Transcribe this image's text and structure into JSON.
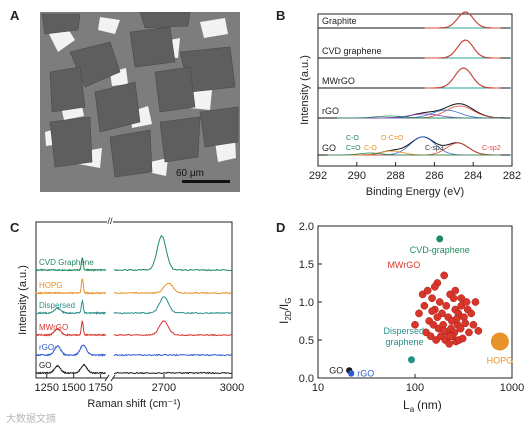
{
  "watermark": "大数据文摘",
  "panel_a": {
    "letter": "A",
    "scale_bar_label": "60 μm",
    "image_description": "micrograph of MWrGO flakes on substrate"
  },
  "panel_b": {
    "letter": "B"
  },
  "panel_c": {
    "letter": "C"
  },
  "panel_d": {
    "letter": "D"
  },
  "colors": {
    "green": "#1f8a5e",
    "orange": "#e8932a",
    "teal": "#2a8f8a",
    "red": "#d9362b",
    "blue": "#2d5bd1",
    "black": "#1a1a1a",
    "fit_red": "#e04a3a",
    "fit_blue": "#3b6fd8",
    "fit_purple": "#8e44ad",
    "baseline_teal": "#27a09a"
  },
  "chart_data": [
    {
      "type": "line",
      "panel": "B",
      "xlabel": "Binding Energy (eV)",
      "ylabel": "Intensity (a.u.)",
      "xlim": [
        292,
        282
      ],
      "x_reversed": true,
      "xticks": [
        292,
        290,
        288,
        286,
        284,
        282
      ],
      "series": [
        {
          "name": "Graphite",
          "peak_eV": 284.4,
          "fwhm": 0.9
        },
        {
          "name": "CVD graphene",
          "peak_eV": 284.4,
          "fwhm": 0.9
        },
        {
          "name": "MWrGO",
          "peak_eV": 284.5,
          "fwhm": 1.0
        },
        {
          "name": "rGO",
          "peak_eV": 284.7,
          "fwhm": 1.6
        },
        {
          "name": "GO",
          "peak_eV": 286.6,
          "fwhm": 1.4
        }
      ],
      "annotations": [
        "C-O",
        "C=O",
        "O-C=O",
        "C-O",
        "C-sp3",
        "C-sp2"
      ]
    },
    {
      "type": "line",
      "panel": "C",
      "xlabel": "Raman shift (cm⁻¹)",
      "ylabel": "Intensity (a.u.)",
      "xticks_left": [
        1250,
        1500,
        1750
      ],
      "xticks_right": [
        2700,
        3000
      ],
      "series": [
        {
          "name": "CVD Graphene",
          "D": null,
          "G": 1580,
          "2D": 2690
        },
        {
          "name": "HOPG",
          "D": null,
          "G": 1580,
          "2D": 2720
        },
        {
          "name": "Dispersed",
          "D": 1350,
          "G": 1580,
          "2D": 2700
        },
        {
          "name": "MWrGO",
          "D": 1350,
          "G": 1580,
          "2D": 2700
        },
        {
          "name": "rGO",
          "D": 1350,
          "G": 1590,
          "2D": null
        },
        {
          "name": "GO",
          "D": 1350,
          "G": 1595,
          "2D": null
        }
      ]
    },
    {
      "type": "scatter",
      "panel": "D",
      "xlabel": "L",
      "xlabel_sub": "a",
      "xlabel_unit": "(nm)",
      "ylabel": "I",
      "ylabel_sub_num": "2D",
      "ylabel_den": "I",
      "ylabel_sub_den": "G",
      "xscale": "log",
      "xlim": [
        10,
        1000
      ],
      "ylim": [
        0,
        2.0
      ],
      "xticks": [
        10,
        100,
        1000
      ],
      "yticks": [
        0.0,
        0.5,
        1.0,
        1.5,
        2.0
      ],
      "labels": {
        "cvd": "CVD-graphene",
        "mwrgo": "MWrGO",
        "dispersed": "Dispersed graphene",
        "go": "GO",
        "rgo": "rGO",
        "hopg": "HOPG"
      },
      "points": {
        "cvd": [
          [
            180,
            1.83
          ]
        ],
        "dispersed": [
          [
            92,
            0.24
          ]
        ],
        "go": [
          [
            21,
            0.1
          ]
        ],
        "rgo": [
          [
            22,
            0.06
          ]
        ],
        "hopg": [
          [
            750,
            0.48
          ]
        ],
        "mwrgo": [
          [
            120,
            1.1
          ],
          [
            135,
            1.15
          ],
          [
            150,
            1.05
          ],
          [
            170,
            1.25
          ],
          [
            180,
            1.0
          ],
          [
            200,
            1.35
          ],
          [
            210,
            0.95
          ],
          [
            230,
            1.1
          ],
          [
            250,
            1.05
          ],
          [
            160,
            0.9
          ],
          [
            190,
            0.85
          ],
          [
            220,
            0.8
          ],
          [
            240,
            0.75
          ],
          [
            260,
            0.9
          ],
          [
            280,
            0.85
          ],
          [
            300,
            0.95
          ],
          [
            320,
            0.8
          ],
          [
            350,
            0.9
          ],
          [
            380,
            0.85
          ],
          [
            400,
            0.7
          ],
          [
            140,
            0.75
          ],
          [
            155,
            0.7
          ],
          [
            175,
            0.65
          ],
          [
            195,
            0.7
          ],
          [
            215,
            0.6
          ],
          [
            235,
            0.65
          ],
          [
            255,
            0.6
          ],
          [
            275,
            0.7
          ],
          [
            295,
            0.65
          ],
          [
            330,
            0.72
          ],
          [
            360,
            0.6
          ],
          [
            130,
            0.6
          ],
          [
            145,
            0.55
          ],
          [
            165,
            0.5
          ],
          [
            185,
            0.55
          ],
          [
            205,
            0.5
          ],
          [
            225,
            0.45
          ],
          [
            245,
            0.55
          ],
          [
            265,
            0.48
          ],
          [
            285,
            0.5
          ],
          [
            310,
            0.52
          ],
          [
            110,
            0.85
          ],
          [
            100,
            0.7
          ],
          [
            420,
            1.0
          ],
          [
            450,
            0.62
          ],
          [
            160,
            1.2
          ],
          [
            260,
            1.15
          ],
          [
            300,
            1.05
          ],
          [
            125,
            0.95
          ],
          [
            340,
            1.0
          ],
          [
            230,
            0.55
          ],
          [
            200,
            0.62
          ],
          [
            170,
            0.8
          ],
          [
            150,
            0.88
          ],
          [
            270,
            0.78
          ]
        ]
      }
    }
  ]
}
